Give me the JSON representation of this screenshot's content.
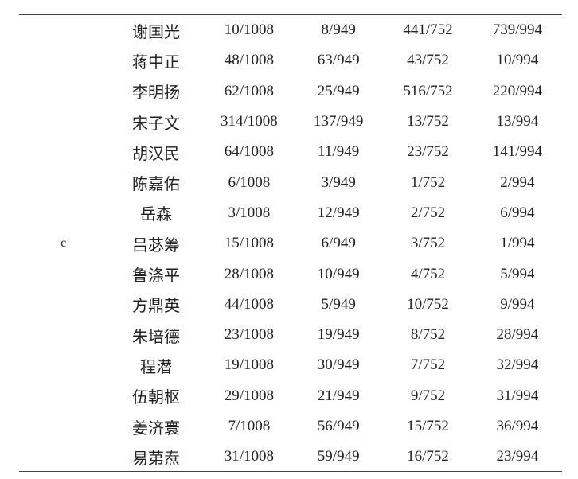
{
  "group_label": "c",
  "rows": [
    {
      "name": "谢国光",
      "values": [
        "10/1008",
        "8/949",
        "441/752",
        "739/994"
      ]
    },
    {
      "name": "蒋中正",
      "values": [
        "48/1008",
        "63/949",
        "43/752",
        "10/994"
      ]
    },
    {
      "name": "李明扬",
      "values": [
        "62/1008",
        "25/949",
        "516/752",
        "220/994"
      ]
    },
    {
      "name": "宋子文",
      "values": [
        "314/1008",
        "137/949",
        "13/752",
        "13/994"
      ]
    },
    {
      "name": "胡汉民",
      "values": [
        "64/1008",
        "11/949",
        "23/752",
        "141/994"
      ]
    },
    {
      "name": "陈嘉佑",
      "values": [
        "6/1008",
        "3/949",
        "1/752",
        "2/994"
      ]
    },
    {
      "name": "岳森",
      "values": [
        "3/1008",
        "12/949",
        "2/752",
        "6/994"
      ]
    },
    {
      "name": "吕苾筹",
      "values": [
        "15/1008",
        "6/949",
        "3/752",
        "1/994"
      ]
    },
    {
      "name": "鲁涤平",
      "values": [
        "28/1008",
        "10/949",
        "4/752",
        "5/994"
      ]
    },
    {
      "name": "方鼎英",
      "values": [
        "44/1008",
        "5/949",
        "10/752",
        "9/994"
      ]
    },
    {
      "name": "朱培德",
      "values": [
        "23/1008",
        "19/949",
        "8/752",
        "28/994"
      ]
    },
    {
      "name": "程潜",
      "values": [
        "19/1008",
        "30/949",
        "7/752",
        "32/994"
      ]
    },
    {
      "name": "伍朝枢",
      "values": [
        "29/1008",
        "21/949",
        "9/752",
        "31/994"
      ]
    },
    {
      "name": "姜济寰",
      "values": [
        "7/1008",
        "56/949",
        "15/752",
        "36/994"
      ]
    },
    {
      "name": "易苐焘",
      "values": [
        "31/1008",
        "59/949",
        "16/752",
        "23/994"
      ]
    }
  ]
}
